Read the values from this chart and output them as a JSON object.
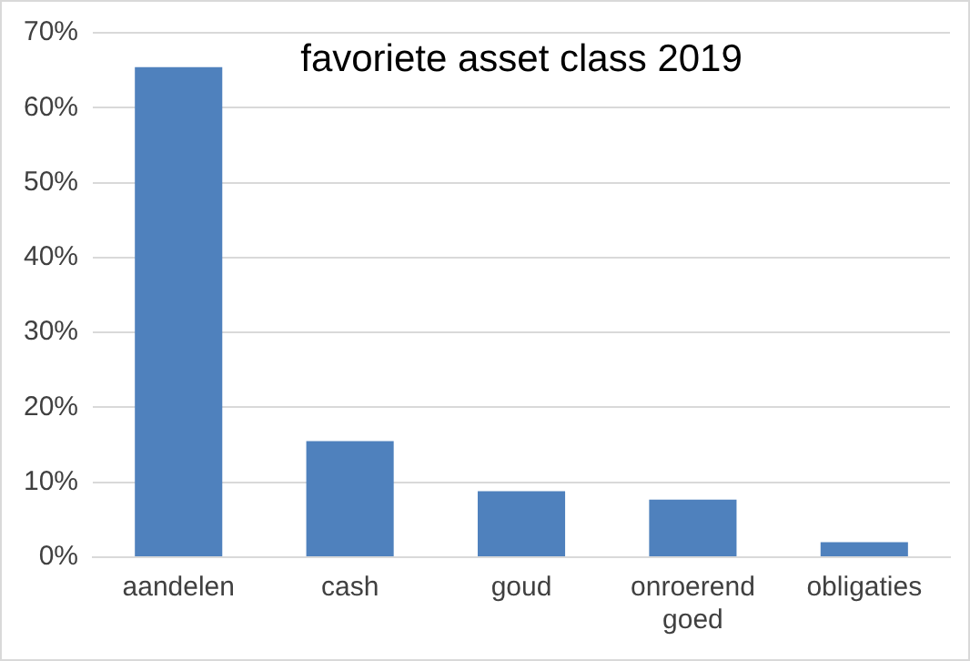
{
  "chart_data": {
    "type": "bar",
    "title": "favoriete asset class 2019",
    "categories": [
      "aandelen",
      "cash",
      "goud",
      "onroerend goed",
      "obligaties"
    ],
    "values": [
      65.4,
      15.5,
      8.8,
      7.7,
      2.0
    ],
    "color": "#4f81bd",
    "ylim": [
      0,
      70
    ],
    "yticks": [
      {
        "value": 0,
        "label": "0%"
      },
      {
        "value": 10,
        "label": "10%"
      },
      {
        "value": 20,
        "label": "20%"
      },
      {
        "value": 30,
        "label": "30%"
      },
      {
        "value": 40,
        "label": "40%"
      },
      {
        "value": 50,
        "label": "50%"
      },
      {
        "value": 60,
        "label": "60%"
      },
      {
        "value": 70,
        "label": "70%"
      }
    ],
    "grid": "y"
  }
}
